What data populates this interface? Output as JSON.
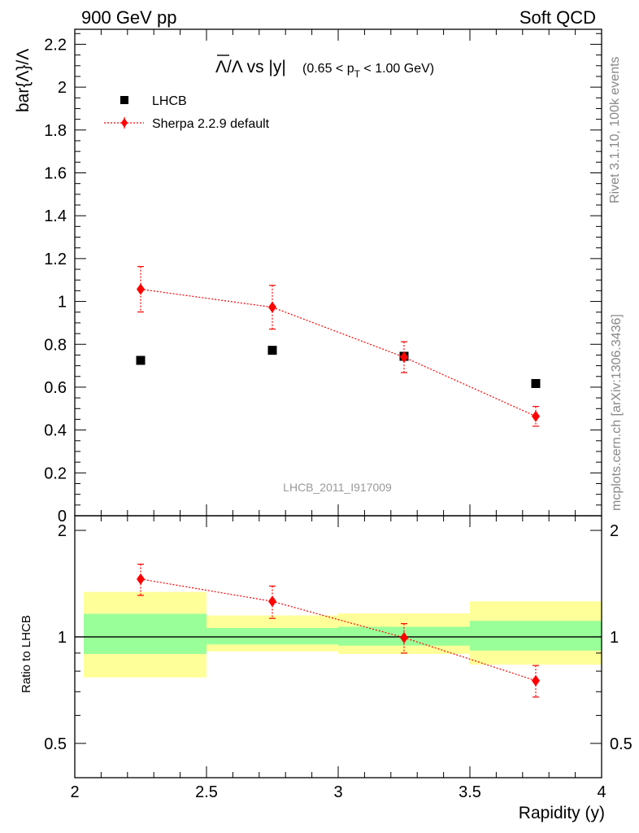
{
  "header": {
    "left": "900 GeV pp",
    "right": "Soft QCD"
  },
  "side_texts": {
    "rivet": "Rivet 3.1.10,  100k events",
    "mcplots": "mcplots.cern.ch [arXiv:1306.3436]"
  },
  "title": {
    "main": "Λ/Λ vs |y|",
    "range_open": "(0.65 < p",
    "range_sub": "T",
    "range_close": " < 1.00 GeV)"
  },
  "watermark": "LHCB_2011_I917009",
  "legend": {
    "data_label": "LHCB",
    "mc_label": "Sherpa 2.2.9 default"
  },
  "colors": {
    "data": "#000000",
    "mc": "#ff0000",
    "band_inner": "#99ff99",
    "band_outer": "#ffff99"
  },
  "chart_data": [
    {
      "type": "scatter",
      "ylabel": "bar{Λ}/Λ",
      "xlim": [
        2,
        4
      ],
      "ylim": [
        0,
        2.27
      ],
      "yticks": [
        "0",
        "0.2",
        "0.4",
        "0.6",
        "0.8",
        "1",
        "1.2",
        "1.4",
        "1.6",
        "1.8",
        "2",
        "2.2"
      ],
      "series": [
        {
          "name": "LHCB",
          "x": [
            2.25,
            2.75,
            3.25,
            3.75
          ],
          "values": [
            0.725,
            0.772,
            0.744,
            0.617
          ]
        },
        {
          "name": "Sherpa 2.2.9 default",
          "x": [
            2.25,
            2.75,
            3.25,
            3.75
          ],
          "values": [
            1.057,
            0.973,
            0.74,
            0.464
          ],
          "err_up": [
            1.163,
            1.075,
            0.812,
            0.51
          ],
          "err_down": [
            0.951,
            0.871,
            0.668,
            0.418
          ]
        }
      ]
    },
    {
      "type": "scatter",
      "ylabel": "Ratio to LHCB",
      "xlabel": "Rapidity (y)",
      "xlim": [
        2,
        4
      ],
      "xticks": [
        "2",
        "2.5",
        "3",
        "3.5",
        "4"
      ],
      "ylim": [
        0.4,
        2.2
      ],
      "log_y": true,
      "yticks": [
        "0.5",
        "1",
        "2"
      ],
      "bins": [
        [
          2,
          2.5
        ],
        [
          2.5,
          3
        ],
        [
          3,
          3.5
        ],
        [
          3.5,
          4
        ]
      ],
      "band_inner": [
        [
          0.895,
          1.162
        ],
        [
          0.952,
          1.06
        ],
        [
          0.945,
          1.068
        ],
        [
          0.915,
          1.11
        ]
      ],
      "band_outer": [
        [
          0.768,
          1.34
        ],
        [
          0.91,
          1.15
        ],
        [
          0.895,
          1.165
        ],
        [
          0.835,
          1.26
        ]
      ],
      "series": [
        {
          "name": "Sherpa 2.2.9 default",
          "x": [
            2.25,
            2.75,
            3.25,
            3.75
          ],
          "values": [
            1.457,
            1.26,
            0.995,
            0.752
          ],
          "err_up": [
            1.605,
            1.392,
            1.09,
            0.83
          ],
          "err_down": [
            1.31,
            1.128,
            0.9,
            0.676
          ]
        }
      ]
    }
  ]
}
